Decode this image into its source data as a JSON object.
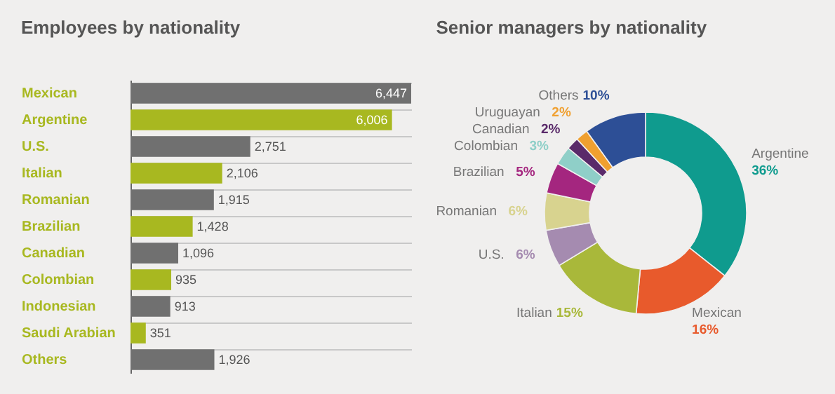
{
  "chart_data": [
    {
      "type": "bar",
      "orientation": "horizontal",
      "title": "Employees by nationality",
      "categories": [
        "Mexican",
        "Argentine",
        "U.S.",
        "Italian",
        "Romanian",
        "Brazilian",
        "Canadian",
        "Colombian",
        "Indonesian",
        "Saudi Arabian",
        "Others"
      ],
      "values": [
        6447,
        6006,
        2751,
        2106,
        1915,
        1428,
        1096,
        935,
        913,
        351,
        1926
      ],
      "colors": [
        "#707070",
        "#a8b820",
        "#707070",
        "#a8b820",
        "#707070",
        "#a8b820",
        "#707070",
        "#a8b820",
        "#707070",
        "#a8b820",
        "#707070"
      ],
      "value_labels": [
        "6,447",
        "6,006",
        "2,751",
        "2,106",
        "1,915",
        "1,428",
        "1,096",
        "935",
        "913",
        "351",
        "1,926"
      ],
      "grid": "y"
    },
    {
      "type": "donut",
      "title": "Senior managers by nationality",
      "categories": [
        "Argentine",
        "Mexican",
        "Italian",
        "U.S.",
        "Romanian",
        "Brazilian",
        "Colombian",
        "Canadian",
        "Uruguayan",
        "Others"
      ],
      "values": [
        36,
        16,
        15,
        6,
        6,
        5,
        3,
        2,
        2,
        10
      ],
      "value_labels": [
        "36%",
        "16%",
        "15%",
        "6%",
        "6%",
        "5%",
        "3%",
        "2%",
        "2%",
        "10%"
      ],
      "colors": [
        "#0f9b8e",
        "#e85a2c",
        "#a9b83a",
        "#a58bb0",
        "#d8d38f",
        "#a4267f",
        "#8fcfc8",
        "#5a2a6a",
        "#f0a030",
        "#2d4f96"
      ]
    }
  ]
}
